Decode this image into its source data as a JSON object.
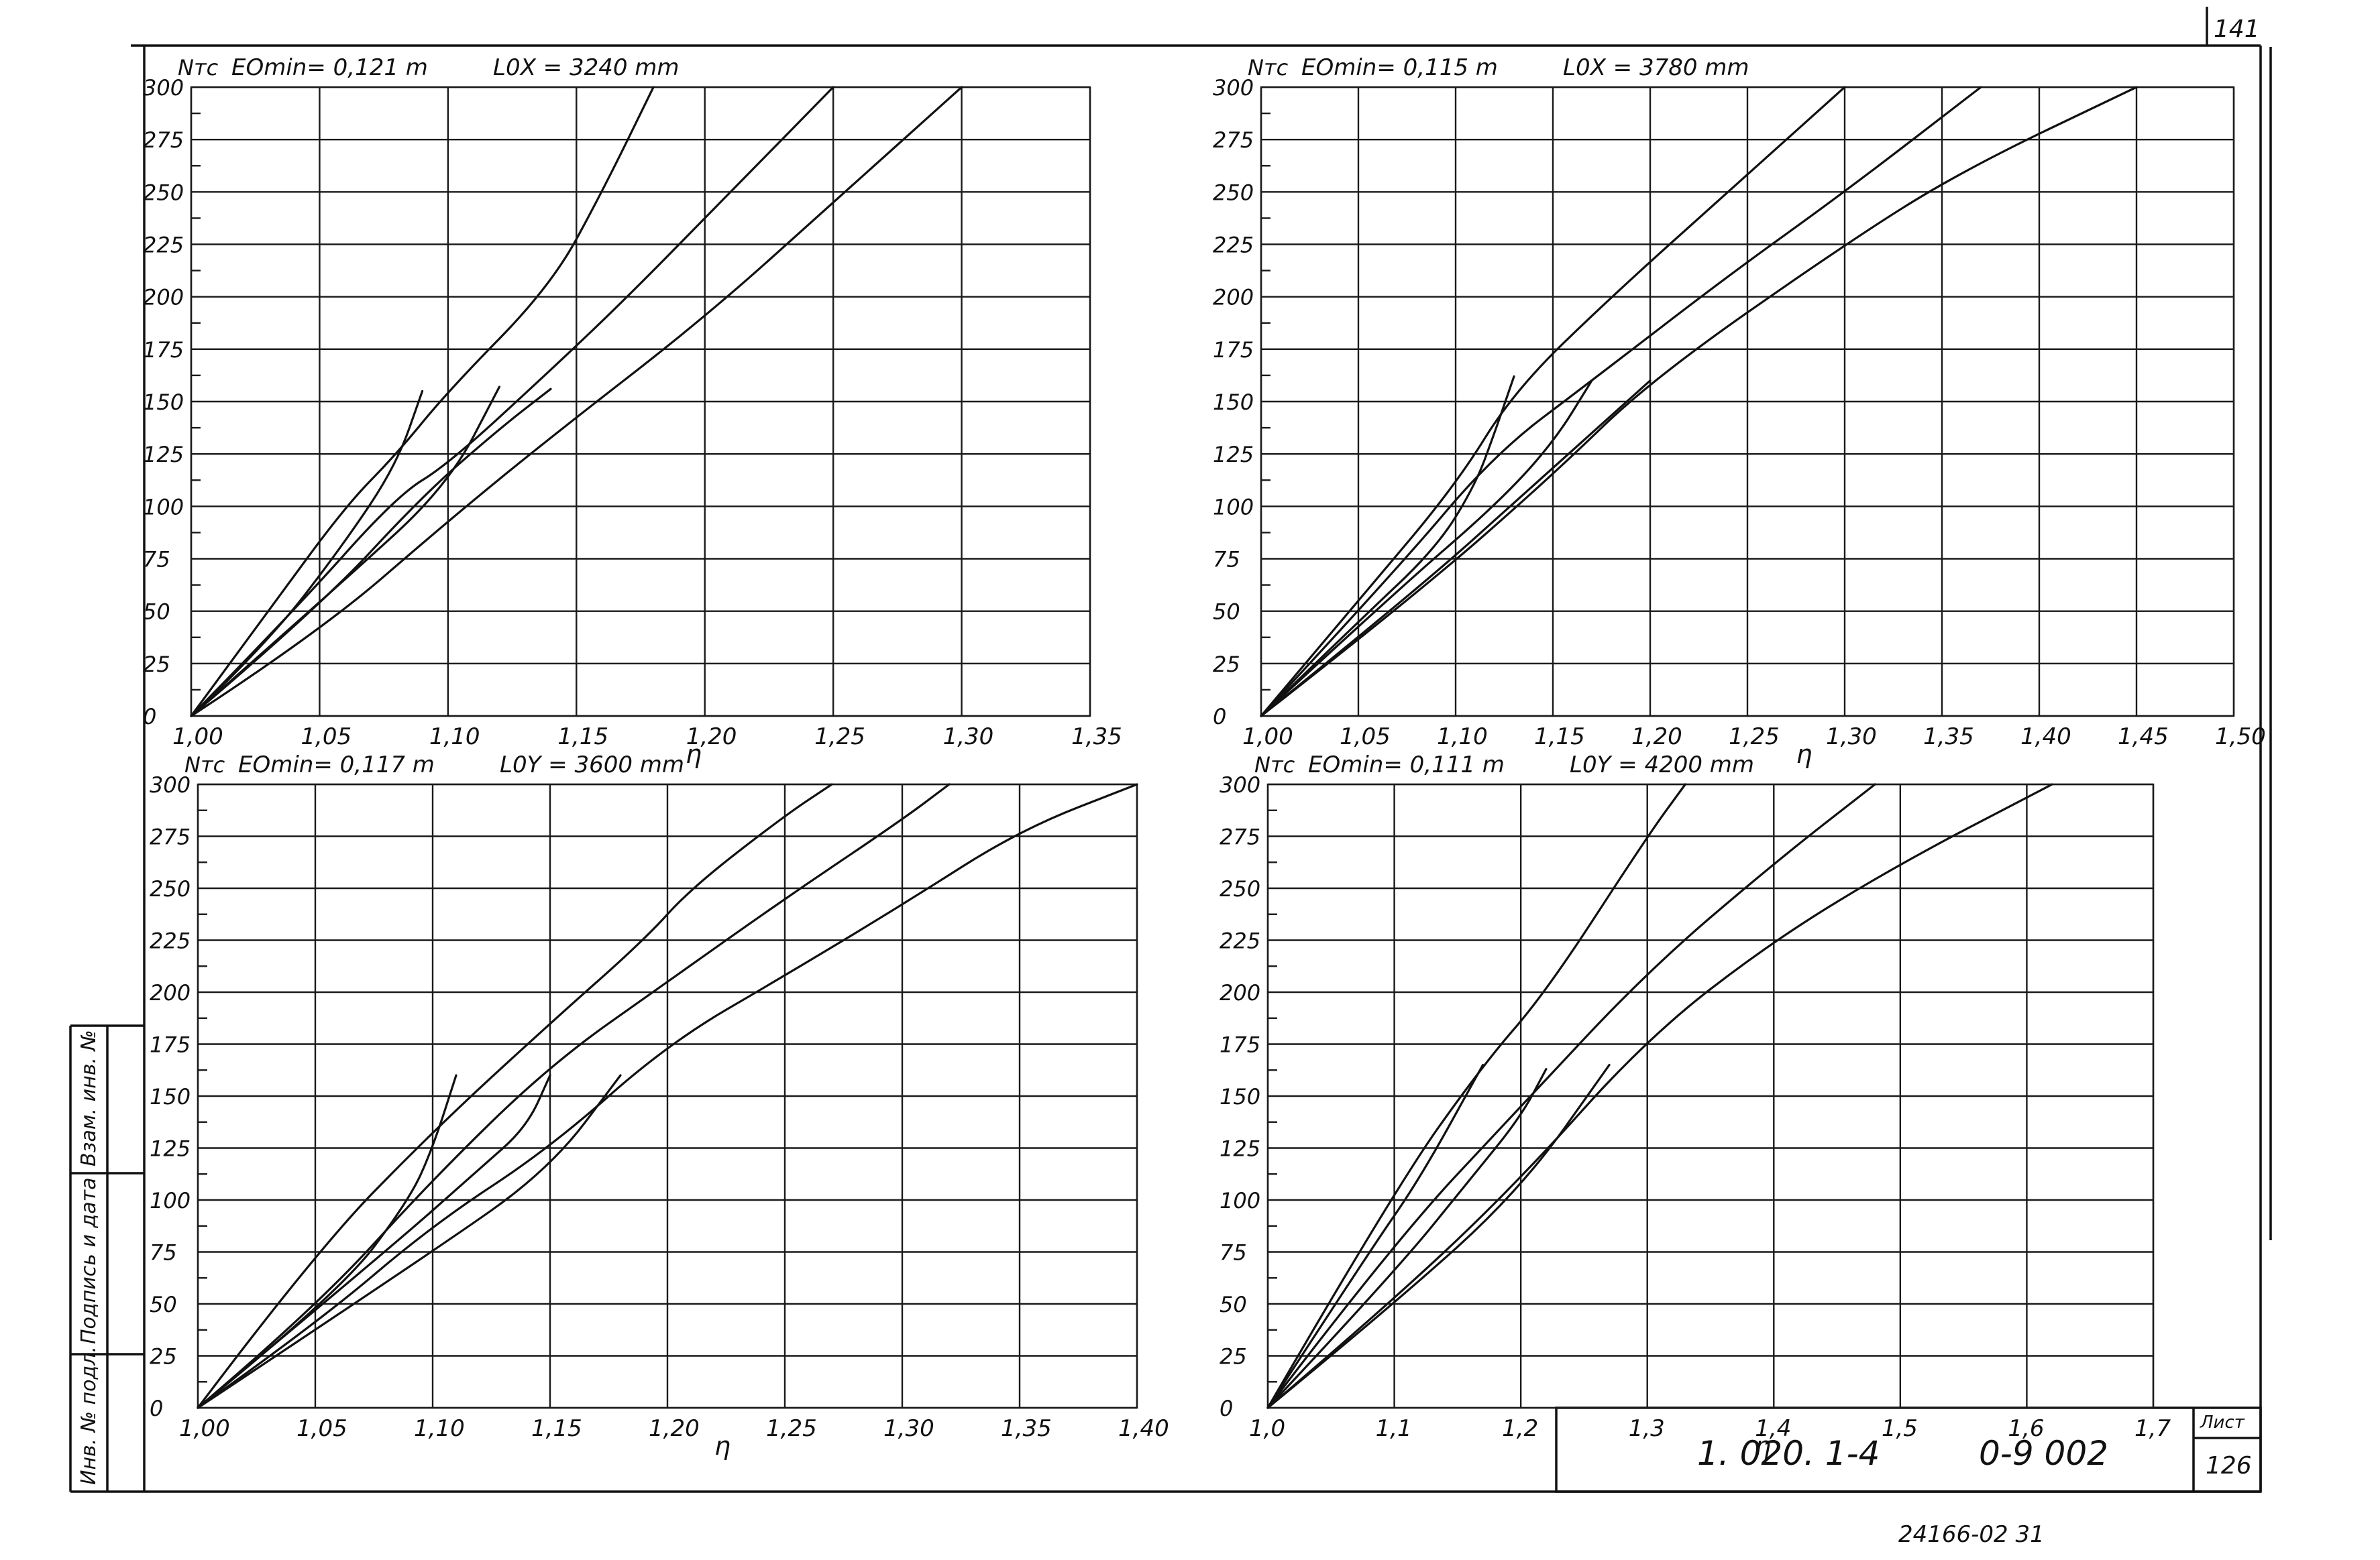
{
  "page": {
    "sheet_number": "141",
    "list_label": "Лист",
    "list_number": "126",
    "doc_code": "1. 020. 1-4",
    "doc_sheet": "0-9 002",
    "archive_note": "24166-02 31",
    "sidebar_labels": [
      "Инв. № подл.",
      "Подпись и дата",
      "Взам. инв. №"
    ]
  },
  "chart_data": [
    {
      "type": "line",
      "name": "top-left",
      "ylabel": "Nтс",
      "xlabel": "η",
      "param1": "EОmin= 0,121 m",
      "param2": "L0X = 3240 mm",
      "xlim": [
        1.0,
        1.35
      ],
      "ylim": [
        0,
        300
      ],
      "x_ticks": [
        "1,00",
        "1,05",
        "1,10",
        "1,15",
        "1,20",
        "1,25",
        "1,30",
        "1,35"
      ],
      "y_ticks": [
        "0",
        "25",
        "50",
        "75",
        "100",
        "125",
        "150",
        "175",
        "200",
        "225",
        "250",
        "275",
        "300"
      ],
      "x_tick_values": [
        1.0,
        1.05,
        1.1,
        1.15,
        1.2,
        1.25,
        1.3,
        1.35
      ],
      "y_tick_values": [
        0,
        25,
        50,
        75,
        100,
        125,
        150,
        175,
        200,
        225,
        250,
        275,
        300
      ],
      "series": [
        {
          "values": [
            [
              1.0,
              0
            ],
            [
              1.03,
              50
            ],
            [
              1.06,
              100
            ],
            [
              1.08,
              125
            ],
            [
              1.1,
              155
            ],
            [
              1.14,
              205
            ],
            [
              1.16,
              250
            ],
            [
              1.18,
              300
            ]
          ]
        },
        {
          "values": [
            [
              1.0,
              0
            ],
            [
              1.04,
              50
            ],
            [
              1.08,
              105
            ],
            [
              1.1,
              120
            ],
            [
              1.14,
              165
            ],
            [
              1.17,
              200
            ],
            [
              1.21,
              250
            ],
            [
              1.25,
              300
            ]
          ]
        },
        {
          "values": [
            [
              1.0,
              0
            ],
            [
              1.05,
              40
            ],
            [
              1.1,
              93
            ],
            [
              1.14,
              133
            ],
            [
              1.2,
              190
            ],
            [
              1.25,
              245
            ],
            [
              1.3,
              300
            ]
          ]
        },
        {
          "values": [
            [
              1.0,
              0
            ],
            [
              1.03,
              35
            ],
            [
              1.06,
              83
            ],
            [
              1.08,
              120
            ],
            [
              1.09,
              155
            ]
          ]
        },
        {
          "values": [
            [
              1.0,
              0
            ],
            [
              1.06,
              65
            ],
            [
              1.1,
              110
            ],
            [
              1.12,
              157
            ]
          ]
        },
        {
          "values": [
            [
              1.0,
              0
            ],
            [
              1.05,
              52
            ],
            [
              1.09,
              105
            ],
            [
              1.12,
              137
            ],
            [
              1.14,
              156
            ]
          ]
        }
      ]
    },
    {
      "type": "line",
      "name": "top-right",
      "ylabel": "Nтс",
      "xlabel": "η",
      "param1": "EОmin= 0,115 m",
      "param2": "L0X = 3780 mm",
      "xlim": [
        1.0,
        1.5
      ],
      "ylim": [
        0,
        300
      ],
      "x_ticks": [
        "1,00",
        "1,05",
        "1,10",
        "1,15",
        "1,20",
        "1,25",
        "1,30",
        "1,35",
        "1,40",
        "1,45",
        "1,50"
      ],
      "y_ticks": [
        "0",
        "25",
        "50",
        "75",
        "100",
        "125",
        "150",
        "175",
        "200",
        "225",
        "250",
        "275",
        "300"
      ],
      "x_tick_values": [
        1.0,
        1.05,
        1.1,
        1.15,
        1.2,
        1.25,
        1.3,
        1.35,
        1.4,
        1.45,
        1.5
      ],
      "y_tick_values": [
        0,
        25,
        50,
        75,
        100,
        125,
        150,
        175,
        200,
        225,
        250,
        275,
        300
      ],
      "series": [
        {
          "values": [
            [
              1.0,
              0
            ],
            [
              1.05,
              55
            ],
            [
              1.1,
              110
            ],
            [
              1.13,
              155
            ],
            [
              1.18,
              200
            ],
            [
              1.24,
              250
            ],
            [
              1.3,
              300
            ]
          ]
        },
        {
          "values": [
            [
              1.0,
              0
            ],
            [
              1.07,
              70
            ],
            [
              1.12,
              125
            ],
            [
              1.17,
              160
            ],
            [
              1.24,
              210
            ],
            [
              1.3,
              250
            ],
            [
              1.37,
              300
            ]
          ]
        },
        {
          "values": [
            [
              1.0,
              0
            ],
            [
              1.08,
              58
            ],
            [
              1.15,
              115
            ],
            [
              1.2,
              160
            ],
            [
              1.3,
              225
            ],
            [
              1.36,
              260
            ],
            [
              1.45,
              300
            ]
          ]
        },
        {
          "values": [
            [
              1.0,
              0
            ],
            [
              1.05,
              45
            ],
            [
              1.09,
              80
            ],
            [
              1.11,
              110
            ],
            [
              1.12,
              135
            ],
            [
              1.13,
              162
            ]
          ]
        },
        {
          "values": [
            [
              1.0,
              0
            ],
            [
              1.07,
              60
            ],
            [
              1.12,
              100
            ],
            [
              1.15,
              130
            ],
            [
              1.17,
              160
            ]
          ]
        },
        {
          "values": [
            [
              1.0,
              0
            ],
            [
              1.08,
              60
            ],
            [
              1.14,
              110
            ],
            [
              1.17,
              135
            ],
            [
              1.2,
              160
            ]
          ]
        }
      ]
    },
    {
      "type": "line",
      "name": "bottom-left",
      "ylabel": "Nтс",
      "xlabel": "η",
      "param1": "EОmin= 0,117 m",
      "param2": "L0Y = 3600 mm",
      "xlim": [
        1.0,
        1.4
      ],
      "ylim": [
        0,
        300
      ],
      "x_ticks": [
        "1,00",
        "1,05",
        "1,10",
        "1,15",
        "1,20",
        "1,25",
        "1,30",
        "1,35",
        "1,40"
      ],
      "y_ticks": [
        "0",
        "25",
        "50",
        "75",
        "100",
        "125",
        "150",
        "175",
        "200",
        "225",
        "250",
        "275",
        "300"
      ],
      "x_tick_values": [
        1.0,
        1.05,
        1.1,
        1.15,
        1.2,
        1.25,
        1.3,
        1.35,
        1.4
      ],
      "y_tick_values": [
        0,
        25,
        50,
        75,
        100,
        125,
        150,
        175,
        200,
        225,
        250,
        275,
        300
      ],
      "series": [
        {
          "values": [
            [
              1.0,
              0
            ],
            [
              1.05,
              75
            ],
            [
              1.1,
              133
            ],
            [
              1.15,
              185
            ],
            [
              1.19,
              225
            ],
            [
              1.21,
              250
            ],
            [
              1.25,
              285
            ],
            [
              1.27,
              300
            ]
          ]
        },
        {
          "values": [
            [
              1.0,
              0
            ],
            [
              1.05,
              48
            ],
            [
              1.1,
              110
            ],
            [
              1.15,
              165
            ],
            [
              1.2,
              205
            ],
            [
              1.25,
              245
            ],
            [
              1.3,
              283
            ],
            [
              1.32,
              300
            ]
          ]
        },
        {
          "values": [
            [
              1.0,
              0
            ],
            [
              1.05,
              40
            ],
            [
              1.1,
              88
            ],
            [
              1.15,
              125
            ],
            [
              1.2,
              175
            ],
            [
              1.25,
              208
            ],
            [
              1.3,
              242
            ],
            [
              1.35,
              278
            ],
            [
              1.4,
              300
            ]
          ]
        },
        {
          "values": [
            [
              1.0,
              0
            ],
            [
              1.06,
              55
            ],
            [
              1.09,
              100
            ],
            [
              1.1,
              125
            ],
            [
              1.11,
              160
            ]
          ]
        },
        {
          "values": [
            [
              1.0,
              0
            ],
            [
              1.08,
              75
            ],
            [
              1.12,
              115
            ],
            [
              1.14,
              135
            ],
            [
              1.15,
              160
            ]
          ]
        },
        {
          "values": [
            [
              1.0,
              0
            ],
            [
              1.1,
              75
            ],
            [
              1.15,
              115
            ],
            [
              1.18,
              160
            ]
          ]
        }
      ]
    },
    {
      "type": "line",
      "name": "bottom-right",
      "ylabel": "Nтс",
      "xlabel": "η",
      "param1": "EОmin= 0,111 m",
      "param2": "L0Y = 4200 mm",
      "xlim": [
        1.0,
        1.7
      ],
      "ylim": [
        0,
        300
      ],
      "x_ticks": [
        "1,0",
        "1,1",
        "1,2",
        "1,3",
        "1,4",
        "1,5",
        "1,6",
        "1,7"
      ],
      "y_ticks": [
        "0",
        "25",
        "50",
        "75",
        "100",
        "125",
        "150",
        "175",
        "200",
        "225",
        "250",
        "275",
        "300"
      ],
      "x_tick_values": [
        1.0,
        1.1,
        1.2,
        1.3,
        1.4,
        1.5,
        1.6,
        1.7
      ],
      "y_tick_values": [
        0,
        25,
        50,
        75,
        100,
        125,
        150,
        175,
        200,
        225,
        250,
        275,
        300
      ],
      "series": [
        {
          "values": [
            [
              1.0,
              0
            ],
            [
              1.1,
              105
            ],
            [
              1.17,
              165
            ],
            [
              1.22,
              200
            ],
            [
              1.3,
              275
            ],
            [
              1.33,
              300
            ]
          ]
        },
        {
          "values": [
            [
              1.0,
              0
            ],
            [
              1.1,
              80
            ],
            [
              1.2,
              145
            ],
            [
              1.3,
              210
            ],
            [
              1.4,
              262
            ],
            [
              1.48,
              300
            ]
          ]
        },
        {
          "values": [
            [
              1.0,
              0
            ],
            [
              1.1,
              52
            ],
            [
              1.2,
              110
            ],
            [
              1.3,
              178
            ],
            [
              1.4,
              225
            ],
            [
              1.5,
              262
            ],
            [
              1.62,
              300
            ]
          ]
        },
        {
          "values": [
            [
              1.0,
              0
            ],
            [
              1.08,
              75
            ],
            [
              1.12,
              110
            ],
            [
              1.17,
              165
            ]
          ]
        },
        {
          "values": [
            [
              1.0,
              0
            ],
            [
              1.1,
              65
            ],
            [
              1.16,
              110
            ],
            [
              1.2,
              140
            ],
            [
              1.22,
              163
            ]
          ]
        },
        {
          "values": [
            [
              1.0,
              0
            ],
            [
              1.1,
              50
            ],
            [
              1.2,
              105
            ],
            [
              1.27,
              165
            ]
          ]
        }
      ]
    }
  ]
}
